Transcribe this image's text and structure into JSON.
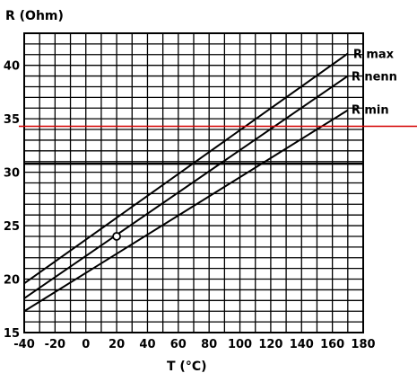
{
  "chart_data": {
    "type": "line",
    "xlabel": "T  (°C)",
    "ylabel": "R (Ohm)",
    "xlim": [
      -40,
      180
    ],
    "ylim": [
      15,
      43
    ],
    "x_ticks": [
      -40,
      -20,
      0,
      20,
      40,
      60,
      80,
      100,
      120,
      140,
      160,
      180
    ],
    "y_ticks": [
      15,
      20,
      25,
      30,
      35,
      40
    ],
    "x_minor_step": 10,
    "y_minor_step": 1,
    "grid": true,
    "series": [
      {
        "name": "R max",
        "x": [
          -40,
          170
        ],
        "y": [
          19.6,
          41.1
        ]
      },
      {
        "name": "R nenn",
        "x": [
          -40,
          170
        ],
        "y": [
          18.2,
          39.0
        ]
      },
      {
        "name": "R min",
        "x": [
          -40,
          170
        ],
        "y": [
          17.0,
          35.8
        ]
      }
    ],
    "markers": [
      {
        "x": 20,
        "y": 24
      }
    ],
    "reference_lines": [
      {
        "y": 34.3,
        "color": "#d40000"
      }
    ],
    "heavy_gridline_y": 30.8
  }
}
